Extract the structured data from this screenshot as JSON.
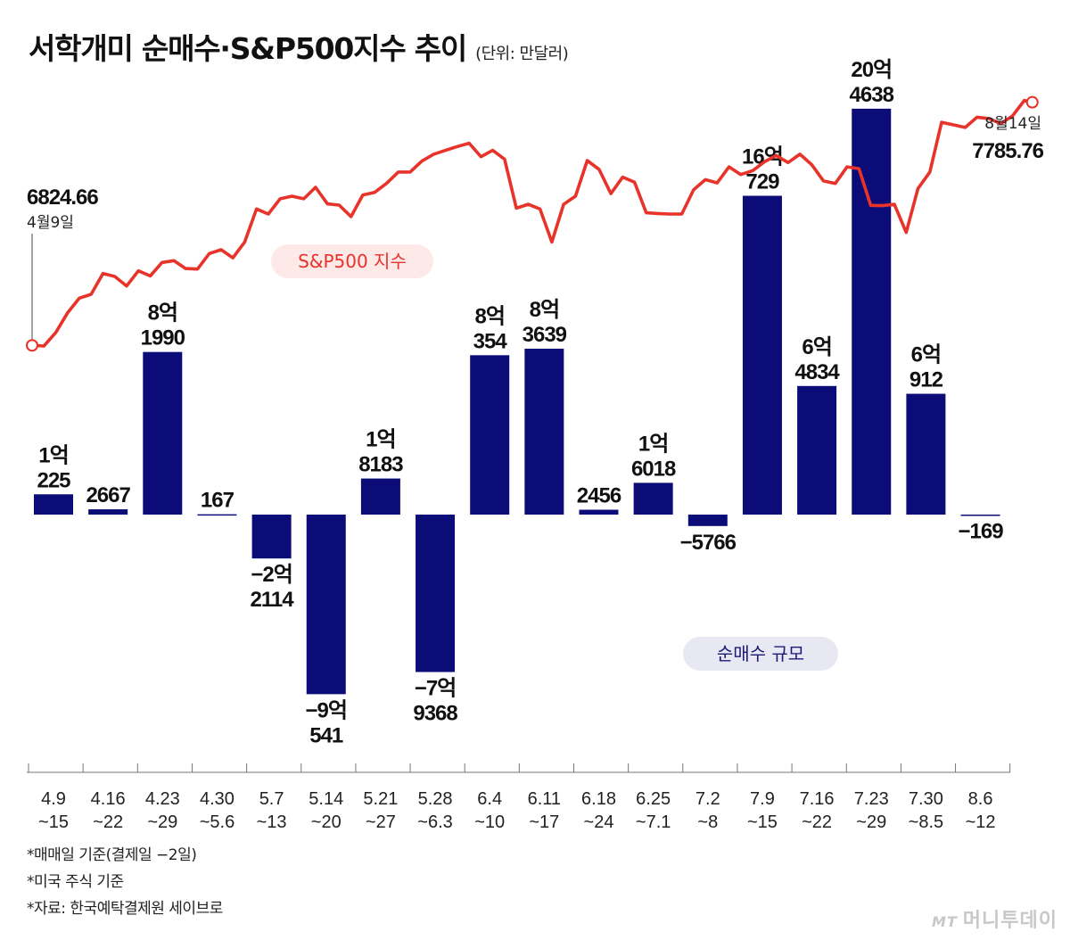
{
  "title": "서학개미 순매수·S&P500지수 추이",
  "unit": "(단위: 만달러)",
  "chart_data": {
    "type": "bar+line",
    "categories": [
      [
        "4.9",
        "~15"
      ],
      [
        "4.16",
        "~22"
      ],
      [
        "4.23",
        "~29"
      ],
      [
        "4.30",
        "~5.6"
      ],
      [
        "5.7",
        "~13"
      ],
      [
        "5.14",
        "~20"
      ],
      [
        "5.21",
        "~27"
      ],
      [
        "5.28",
        "~6.3"
      ],
      [
        "6.4",
        "~10"
      ],
      [
        "6.11",
        "~17"
      ],
      [
        "6.18",
        "~24"
      ],
      [
        "6.25",
        "~7.1"
      ],
      [
        "7.2",
        "~8"
      ],
      [
        "7.9",
        "~15"
      ],
      [
        "7.16",
        "~22"
      ],
      [
        "7.23",
        "~29"
      ],
      [
        "7.30",
        "~8.5"
      ],
      [
        "8.6",
        "~12"
      ]
    ],
    "bars": {
      "name": "순매수 규모",
      "color": "#0c0c78",
      "values": [
        10225,
        2667,
        81990,
        167,
        -22114,
        -90541,
        18183,
        -79368,
        80354,
        83639,
        2456,
        16018,
        -5766,
        160729,
        64834,
        204638,
        60912,
        -169
      ],
      "labels": [
        [
          "1억",
          "225"
        ],
        [
          "2667"
        ],
        [
          "8억",
          "1990"
        ],
        [
          "167"
        ],
        [
          "−2억",
          "2114"
        ],
        [
          "−9억",
          "541"
        ],
        [
          "1억",
          "8183"
        ],
        [
          "−7억",
          "9368"
        ],
        [
          "8억",
          "354"
        ],
        [
          "8억",
          "3639"
        ],
        [
          "2456"
        ],
        [
          "1억",
          "6018"
        ],
        [
          "−5766"
        ],
        [
          "16억",
          "729"
        ],
        [
          "6억",
          "4834"
        ],
        [
          "20억",
          "4638"
        ],
        [
          "6억",
          "912"
        ],
        [
          "−169"
        ]
      ]
    },
    "line": {
      "name": "S&P500 지수",
      "color": "#e8332a",
      "start_value": "6824.66",
      "start_label": "4월9일",
      "end_value": "7785.76",
      "end_label": "8월14일",
      "values": [
        6824.66,
        6822,
        6875,
        6952,
        7010,
        7025,
        7107,
        7095,
        7058,
        7117,
        7097,
        7150,
        7157,
        7126,
        7124,
        7185,
        7200,
        7168,
        7230,
        7360,
        7340,
        7400,
        7410,
        7400,
        7445,
        7380,
        7375,
        7330,
        7415,
        7425,
        7460,
        7505,
        7505,
        7548,
        7575,
        7590,
        7605,
        7618,
        7565,
        7590,
        7555,
        7363,
        7378,
        7360,
        7230,
        7378,
        7410,
        7550,
        7515,
        7420,
        7485,
        7465,
        7345,
        7342,
        7340,
        7340,
        7435,
        7475,
        7462,
        7525,
        7495,
        7510,
        7545,
        7570,
        7542,
        7575,
        7534,
        7470,
        7460,
        7525,
        7518,
        7374,
        7373,
        7378,
        7268,
        7440,
        7505,
        7700,
        7690,
        7680,
        7720,
        7715,
        7695,
        7725,
        7785.76,
        7775
      ],
      "range": [
        6150,
        7900
      ]
    }
  },
  "legend_line": "S&P500 지수",
  "legend_bars": "순매수 규모",
  "notes": [
    "*매매일 기준(결제일 −2일)",
    "*미국 주식 기준",
    "*자료: 한국예탁결제원 세이브로"
  ],
  "logo": {
    "mark": "MT",
    "text": "머니투데이"
  }
}
